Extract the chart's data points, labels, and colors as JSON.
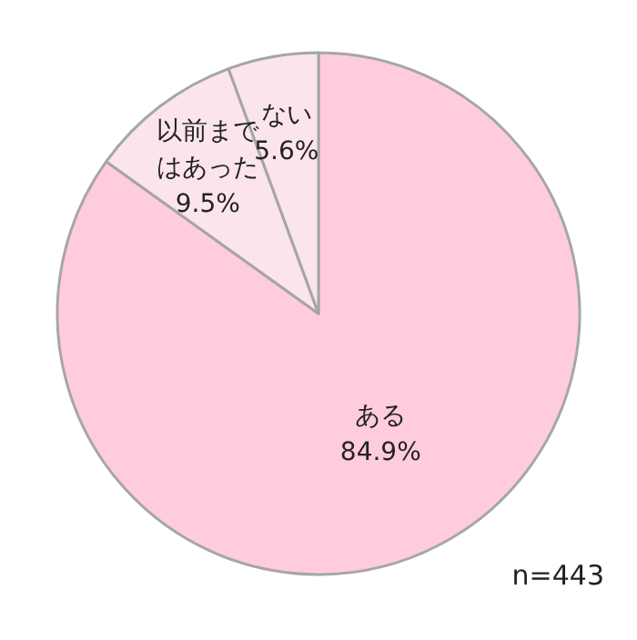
{
  "chart_data": {
    "type": "pie",
    "categories": [
      "ある",
      "以前まではあった",
      "ない"
    ],
    "values": [
      84.9,
      9.5,
      5.6
    ],
    "colors": [
      "#ffccdd",
      "#fbe4ec",
      "#fbe4ec"
    ],
    "value_labels": [
      "84.9%",
      "9.5%",
      "5.6%"
    ],
    "annotations": [
      "n=443"
    ],
    "legend": false
  }
}
